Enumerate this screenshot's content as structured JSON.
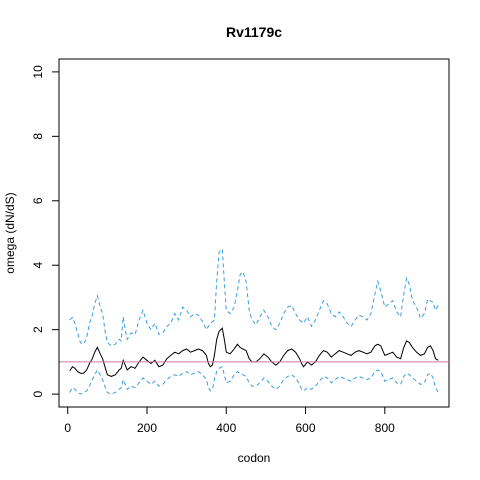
{
  "chart_data": {
    "type": "line",
    "title": "Rv1179c",
    "xlabel": "codon",
    "ylabel": "omega (dN/dS)",
    "xlim": [
      -22,
      962
    ],
    "ylim": [
      -0.4,
      10.4
    ],
    "xticks": [
      0,
      200,
      400,
      600,
      800
    ],
    "yticks": [
      0,
      2,
      4,
      6,
      8,
      10
    ],
    "grid": false,
    "reference_line": {
      "y": 1,
      "color": "#cc79a7"
    },
    "colors": {
      "omega": "#000000",
      "bounds": "#3a9ee0"
    },
    "series": [
      {
        "key": "upper",
        "style": "dashed",
        "points": [
          [
            5,
            2.3
          ],
          [
            12,
            2.38
          ],
          [
            18,
            2.2
          ],
          [
            25,
            1.9
          ],
          [
            32,
            1.6
          ],
          [
            40,
            1.55
          ],
          [
            48,
            1.75
          ],
          [
            55,
            2.2
          ],
          [
            62,
            2.45
          ],
          [
            68,
            2.8
          ],
          [
            75,
            3.05
          ],
          [
            82,
            2.7
          ],
          [
            88,
            2.5
          ],
          [
            95,
            1.9
          ],
          [
            100,
            1.6
          ],
          [
            110,
            1.5
          ],
          [
            120,
            1.55
          ],
          [
            130,
            1.7
          ],
          [
            135,
            1.65
          ],
          [
            140,
            2.4
          ],
          [
            145,
            2.0
          ],
          [
            150,
            1.7
          ],
          [
            160,
            1.9
          ],
          [
            170,
            1.85
          ],
          [
            180,
            2.3
          ],
          [
            190,
            2.6
          ],
          [
            200,
            2.2
          ],
          [
            210,
            2.0
          ],
          [
            220,
            2.2
          ],
          [
            230,
            1.85
          ],
          [
            240,
            1.9
          ],
          [
            250,
            2.1
          ],
          [
            260,
            2.2
          ],
          [
            270,
            2.5
          ],
          [
            280,
            2.3
          ],
          [
            290,
            2.7
          ],
          [
            300,
            2.6
          ],
          [
            310,
            2.4
          ],
          [
            320,
            2.5
          ],
          [
            330,
            2.45
          ],
          [
            340,
            2.25
          ],
          [
            350,
            2.0
          ],
          [
            360,
            2.2
          ],
          [
            370,
            2.3
          ],
          [
            376,
            3.5
          ],
          [
            382,
            4.4
          ],
          [
            390,
            4.5
          ],
          [
            395,
            3.5
          ],
          [
            400,
            2.6
          ],
          [
            410,
            2.5
          ],
          [
            420,
            2.7
          ],
          [
            428,
            3.2
          ],
          [
            435,
            3.7
          ],
          [
            442,
            3.8
          ],
          [
            450,
            3.5
          ],
          [
            458,
            2.6
          ],
          [
            465,
            2.3
          ],
          [
            475,
            2.15
          ],
          [
            485,
            2.4
          ],
          [
            495,
            2.6
          ],
          [
            505,
            2.4
          ],
          [
            515,
            2.1
          ],
          [
            525,
            2.0
          ],
          [
            535,
            2.2
          ],
          [
            545,
            2.5
          ],
          [
            555,
            2.7
          ],
          [
            565,
            2.75
          ],
          [
            575,
            2.5
          ],
          [
            585,
            2.3
          ],
          [
            595,
            2.2
          ],
          [
            605,
            2.4
          ],
          [
            615,
            2.1
          ],
          [
            625,
            2.3
          ],
          [
            635,
            2.6
          ],
          [
            645,
            2.9
          ],
          [
            655,
            2.8
          ],
          [
            665,
            2.5
          ],
          [
            675,
            2.4
          ],
          [
            685,
            2.55
          ],
          [
            695,
            2.4
          ],
          [
            705,
            2.2
          ],
          [
            715,
            2.1
          ],
          [
            725,
            2.3
          ],
          [
            735,
            2.45
          ],
          [
            745,
            2.4
          ],
          [
            755,
            2.3
          ],
          [
            765,
            2.5
          ],
          [
            775,
            3.1
          ],
          [
            782,
            3.5
          ],
          [
            790,
            3.2
          ],
          [
            800,
            2.7
          ],
          [
            810,
            2.8
          ],
          [
            820,
            2.9
          ],
          [
            830,
            2.55
          ],
          [
            840,
            2.4
          ],
          [
            848,
            3.1
          ],
          [
            855,
            3.6
          ],
          [
            862,
            3.4
          ],
          [
            870,
            2.9
          ],
          [
            880,
            2.7
          ],
          [
            890,
            2.35
          ],
          [
            900,
            2.5
          ],
          [
            908,
            2.95
          ],
          [
            915,
            2.9
          ],
          [
            922,
            2.85
          ],
          [
            928,
            2.6
          ],
          [
            935,
            2.75
          ]
        ]
      },
      {
        "key": "omega",
        "style": "solid",
        "points": [
          [
            5,
            0.72
          ],
          [
            12,
            0.85
          ],
          [
            18,
            0.8
          ],
          [
            25,
            0.7
          ],
          [
            32,
            0.65
          ],
          [
            40,
            0.65
          ],
          [
            48,
            0.75
          ],
          [
            55,
            0.95
          ],
          [
            62,
            1.1
          ],
          [
            68,
            1.3
          ],
          [
            75,
            1.45
          ],
          [
            82,
            1.25
          ],
          [
            88,
            1.1
          ],
          [
            95,
            0.8
          ],
          [
            100,
            0.6
          ],
          [
            110,
            0.55
          ],
          [
            120,
            0.6
          ],
          [
            130,
            0.75
          ],
          [
            135,
            0.8
          ],
          [
            140,
            1.05
          ],
          [
            145,
            0.9
          ],
          [
            150,
            0.75
          ],
          [
            160,
            0.85
          ],
          [
            170,
            0.8
          ],
          [
            180,
            1.0
          ],
          [
            190,
            1.15
          ],
          [
            200,
            1.05
          ],
          [
            210,
            0.95
          ],
          [
            220,
            1.05
          ],
          [
            230,
            0.85
          ],
          [
            240,
            0.9
          ],
          [
            250,
            1.1
          ],
          [
            260,
            1.2
          ],
          [
            270,
            1.3
          ],
          [
            280,
            1.25
          ],
          [
            290,
            1.35
          ],
          [
            300,
            1.4
          ],
          [
            310,
            1.3
          ],
          [
            320,
            1.35
          ],
          [
            330,
            1.4
          ],
          [
            340,
            1.35
          ],
          [
            350,
            1.2
          ],
          [
            355,
            0.95
          ],
          [
            360,
            0.85
          ],
          [
            365,
            0.9
          ],
          [
            370,
            1.2
          ],
          [
            376,
            1.7
          ],
          [
            382,
            1.95
          ],
          [
            390,
            2.05
          ],
          [
            395,
            1.7
          ],
          [
            400,
            1.3
          ],
          [
            410,
            1.25
          ],
          [
            420,
            1.4
          ],
          [
            428,
            1.55
          ],
          [
            435,
            1.45
          ],
          [
            442,
            1.4
          ],
          [
            450,
            1.35
          ],
          [
            458,
            1.1
          ],
          [
            465,
            1.0
          ],
          [
            475,
            1.0
          ],
          [
            485,
            1.1
          ],
          [
            495,
            1.25
          ],
          [
            505,
            1.15
          ],
          [
            515,
            1.0
          ],
          [
            525,
            0.9
          ],
          [
            535,
            1.0
          ],
          [
            545,
            1.2
          ],
          [
            555,
            1.35
          ],
          [
            565,
            1.4
          ],
          [
            575,
            1.3
          ],
          [
            585,
            1.1
          ],
          [
            590,
            0.95
          ],
          [
            595,
            0.85
          ],
          [
            605,
            1.0
          ],
          [
            615,
            0.9
          ],
          [
            625,
            1.0
          ],
          [
            635,
            1.2
          ],
          [
            645,
            1.35
          ],
          [
            655,
            1.3
          ],
          [
            665,
            1.15
          ],
          [
            675,
            1.25
          ],
          [
            685,
            1.35
          ],
          [
            695,
            1.3
          ],
          [
            705,
            1.25
          ],
          [
            715,
            1.2
          ],
          [
            725,
            1.3
          ],
          [
            735,
            1.35
          ],
          [
            745,
            1.3
          ],
          [
            755,
            1.25
          ],
          [
            765,
            1.3
          ],
          [
            775,
            1.5
          ],
          [
            782,
            1.55
          ],
          [
            790,
            1.5
          ],
          [
            800,
            1.2
          ],
          [
            810,
            1.25
          ],
          [
            820,
            1.3
          ],
          [
            830,
            1.15
          ],
          [
            840,
            1.1
          ],
          [
            848,
            1.45
          ],
          [
            855,
            1.65
          ],
          [
            862,
            1.6
          ],
          [
            870,
            1.45
          ],
          [
            880,
            1.3
          ],
          [
            890,
            1.2
          ],
          [
            900,
            1.25
          ],
          [
            908,
            1.45
          ],
          [
            915,
            1.5
          ],
          [
            922,
            1.35
          ],
          [
            928,
            1.1
          ],
          [
            935,
            1.05
          ]
        ]
      },
      {
        "key": "lower",
        "style": "dashed",
        "points": [
          [
            5,
            0.05
          ],
          [
            12,
            0.2
          ],
          [
            18,
            0.15
          ],
          [
            25,
            0.05
          ],
          [
            32,
            0.0
          ],
          [
            40,
            0.05
          ],
          [
            48,
            0.1
          ],
          [
            55,
            0.25
          ],
          [
            62,
            0.45
          ],
          [
            68,
            0.6
          ],
          [
            75,
            0.75
          ],
          [
            82,
            0.6
          ],
          [
            88,
            0.45
          ],
          [
            95,
            0.2
          ],
          [
            100,
            0.05
          ],
          [
            110,
            0.0
          ],
          [
            120,
            0.05
          ],
          [
            130,
            0.15
          ],
          [
            135,
            0.2
          ],
          [
            140,
            0.45
          ],
          [
            145,
            0.3
          ],
          [
            150,
            0.15
          ],
          [
            160,
            0.25
          ],
          [
            170,
            0.2
          ],
          [
            180,
            0.35
          ],
          [
            190,
            0.5
          ],
          [
            200,
            0.4
          ],
          [
            210,
            0.3
          ],
          [
            220,
            0.4
          ],
          [
            230,
            0.25
          ],
          [
            240,
            0.3
          ],
          [
            250,
            0.45
          ],
          [
            260,
            0.55
          ],
          [
            270,
            0.6
          ],
          [
            280,
            0.55
          ],
          [
            290,
            0.65
          ],
          [
            300,
            0.7
          ],
          [
            310,
            0.6
          ],
          [
            320,
            0.65
          ],
          [
            330,
            0.7
          ],
          [
            340,
            0.6
          ],
          [
            350,
            0.45
          ],
          [
            355,
            0.2
          ],
          [
            360,
            0.1
          ],
          [
            365,
            0.15
          ],
          [
            370,
            0.45
          ],
          [
            376,
            0.7
          ],
          [
            382,
            0.8
          ],
          [
            390,
            0.85
          ],
          [
            395,
            0.6
          ],
          [
            400,
            0.35
          ],
          [
            410,
            0.4
          ],
          [
            420,
            0.6
          ],
          [
            428,
            0.7
          ],
          [
            435,
            0.65
          ],
          [
            442,
            0.6
          ],
          [
            450,
            0.55
          ],
          [
            458,
            0.35
          ],
          [
            465,
            0.25
          ],
          [
            475,
            0.25
          ],
          [
            485,
            0.35
          ],
          [
            495,
            0.5
          ],
          [
            505,
            0.4
          ],
          [
            515,
            0.25
          ],
          [
            525,
            0.15
          ],
          [
            535,
            0.25
          ],
          [
            545,
            0.45
          ],
          [
            555,
            0.55
          ],
          [
            565,
            0.6
          ],
          [
            575,
            0.5
          ],
          [
            585,
            0.3
          ],
          [
            590,
            0.15
          ],
          [
            595,
            0.1
          ],
          [
            605,
            0.2
          ],
          [
            615,
            0.15
          ],
          [
            625,
            0.25
          ],
          [
            635,
            0.4
          ],
          [
            645,
            0.55
          ],
          [
            655,
            0.5
          ],
          [
            665,
            0.35
          ],
          [
            675,
            0.45
          ],
          [
            685,
            0.55
          ],
          [
            695,
            0.5
          ],
          [
            705,
            0.45
          ],
          [
            715,
            0.4
          ],
          [
            725,
            0.5
          ],
          [
            735,
            0.55
          ],
          [
            745,
            0.5
          ],
          [
            755,
            0.45
          ],
          [
            765,
            0.5
          ],
          [
            775,
            0.7
          ],
          [
            782,
            0.75
          ],
          [
            790,
            0.7
          ],
          [
            800,
            0.4
          ],
          [
            810,
            0.45
          ],
          [
            820,
            0.5
          ],
          [
            830,
            0.35
          ],
          [
            840,
            0.3
          ],
          [
            848,
            0.55
          ],
          [
            855,
            0.65
          ],
          [
            862,
            0.6
          ],
          [
            870,
            0.5
          ],
          [
            880,
            0.4
          ],
          [
            890,
            0.3
          ],
          [
            900,
            0.35
          ],
          [
            908,
            0.6
          ],
          [
            915,
            0.65
          ],
          [
            922,
            0.5
          ],
          [
            928,
            0.2
          ],
          [
            935,
            0.05
          ]
        ]
      }
    ]
  }
}
